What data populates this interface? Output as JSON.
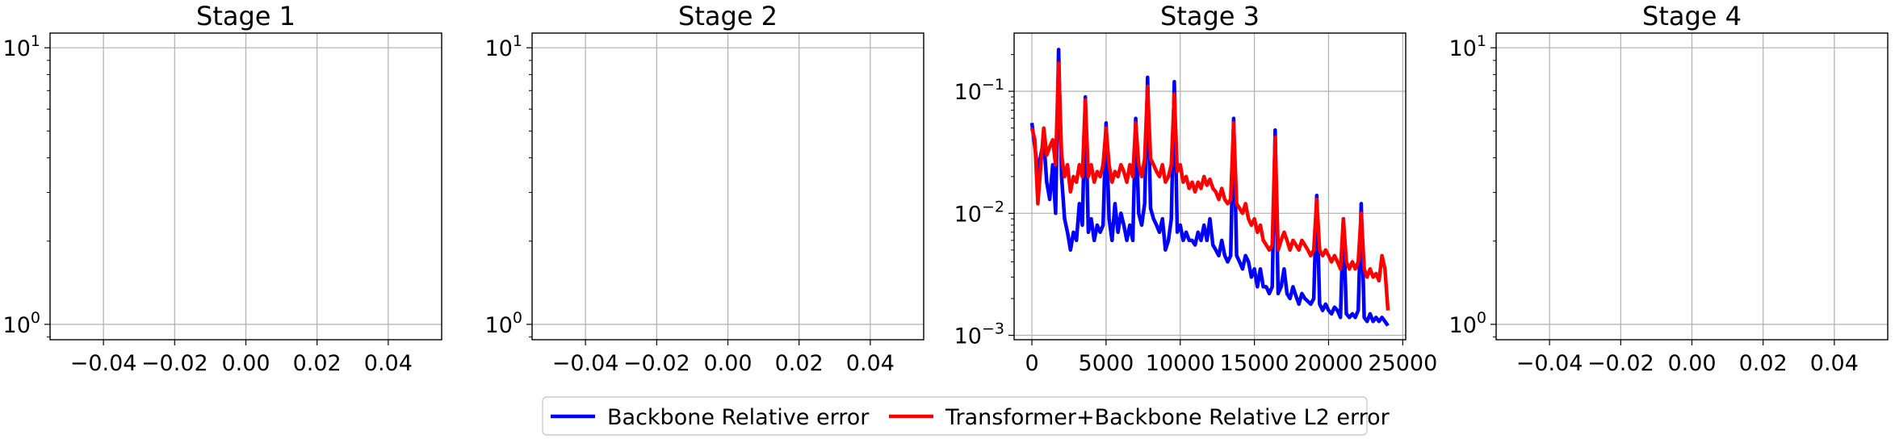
{
  "chart_data": [
    {
      "type": "line",
      "title": "Stage 1",
      "xlabel": "",
      "ylabel": "",
      "yscale": "log",
      "xlim": [
        -0.055,
        0.055
      ],
      "ylim": [
        0.88,
        11.3
      ],
      "grid": true,
      "xticks": [
        -0.04,
        -0.02,
        0.0,
        0.02,
        0.04
      ],
      "xtick_labels": [
        "−0.04",
        "−0.02",
        "0.00",
        "0.02",
        "0.04"
      ],
      "yticks": [
        1,
        10
      ],
      "ytick_labels": [
        [
          "10",
          "0"
        ],
        [
          "10",
          "1"
        ]
      ],
      "series": []
    },
    {
      "type": "line",
      "title": "Stage 2",
      "xlabel": "",
      "ylabel": "",
      "yscale": "log",
      "xlim": [
        -0.055,
        0.055
      ],
      "ylim": [
        0.88,
        11.3
      ],
      "grid": true,
      "xticks": [
        -0.04,
        -0.02,
        0.0,
        0.02,
        0.04
      ],
      "xtick_labels": [
        "−0.04",
        "−0.02",
        "0.00",
        "0.02",
        "0.04"
      ],
      "yticks": [
        1,
        10
      ],
      "ytick_labels": [
        [
          "10",
          "0"
        ],
        [
          "10",
          "1"
        ]
      ],
      "series": []
    },
    {
      "type": "line",
      "title": "Stage 3",
      "xlabel": "",
      "ylabel": "",
      "yscale": "log",
      "xlim": [
        -1200,
        25200
      ],
      "ylim": [
        0.00092,
        0.3
      ],
      "grid": true,
      "xticks": [
        0,
        5000,
        10000,
        15000,
        20000,
        25000
      ],
      "xtick_labels": [
        "0",
        "5000",
        "10000",
        "15000",
        "20000",
        "25000"
      ],
      "yticks": [
        0.001,
        0.01,
        0.1
      ],
      "ytick_labels": [
        [
          "10",
          "−3"
        ],
        [
          "10",
          "−2"
        ],
        [
          "10",
          "−1"
        ]
      ],
      "series": [
        {
          "name": "Backbone Relative error",
          "color": "#0000ff",
          "x": [
            0,
            200,
            400,
            600,
            800,
            1000,
            1200,
            1400,
            1600,
            1800,
            2000,
            2200,
            2400,
            2600,
            2800,
            3000,
            3200,
            3400,
            3600,
            3800,
            4000,
            4200,
            4400,
            4600,
            4800,
            5000,
            5200,
            5400,
            5600,
            5800,
            6000,
            6200,
            6400,
            6600,
            6800,
            7000,
            7200,
            7400,
            7600,
            7800,
            8000,
            8200,
            8400,
            8600,
            8800,
            9000,
            9200,
            9400,
            9600,
            9800,
            10000,
            10200,
            10400,
            10600,
            10800,
            11000,
            11200,
            11400,
            11600,
            11800,
            12000,
            12200,
            12400,
            12600,
            12800,
            13000,
            13200,
            13400,
            13600,
            13800,
            14000,
            14200,
            14400,
            14600,
            14800,
            15000,
            15200,
            15400,
            15600,
            15800,
            16000,
            16200,
            16400,
            16600,
            16800,
            17000,
            17200,
            17400,
            17600,
            17800,
            18000,
            18200,
            18400,
            18600,
            18800,
            19000,
            19200,
            19400,
            19600,
            19800,
            20000,
            20200,
            20400,
            20600,
            20800,
            21000,
            21200,
            21400,
            21600,
            21800,
            22000,
            22200,
            22400,
            22600,
            22800,
            23000,
            23200,
            23400,
            23600,
            23800,
            24000
          ],
          "y": [
            0.055,
            0.035,
            0.022,
            0.03,
            0.04,
            0.018,
            0.013,
            0.025,
            0.01,
            0.22,
            0.02,
            0.009,
            0.007,
            0.005,
            0.007,
            0.006,
            0.012,
            0.008,
            0.09,
            0.007,
            0.009,
            0.006,
            0.008,
            0.007,
            0.008,
            0.055,
            0.009,
            0.006,
            0.012,
            0.007,
            0.01,
            0.008,
            0.006,
            0.008,
            0.006,
            0.06,
            0.01,
            0.008,
            0.012,
            0.13,
            0.011,
            0.009,
            0.008,
            0.007,
            0.009,
            0.005,
            0.006,
            0.009,
            0.12,
            0.007,
            0.008,
            0.006,
            0.007,
            0.006,
            0.006,
            0.0055,
            0.007,
            0.006,
            0.008,
            0.006,
            0.009,
            0.0055,
            0.005,
            0.0045,
            0.006,
            0.0045,
            0.004,
            0.0045,
            0.06,
            0.0045,
            0.004,
            0.0035,
            0.0045,
            0.004,
            0.003,
            0.0035,
            0.0025,
            0.0035,
            0.0025,
            0.0025,
            0.0022,
            0.0025,
            0.048,
            0.0022,
            0.0025,
            0.0035,
            0.0022,
            0.002,
            0.0025,
            0.0021,
            0.0018,
            0.0022,
            0.002,
            0.0019,
            0.0018,
            0.002,
            0.014,
            0.0018,
            0.0016,
            0.0018,
            0.0016,
            0.0015,
            0.0017,
            0.0016,
            0.0014,
            0.009,
            0.0015,
            0.0014,
            0.0015,
            0.0014,
            0.0016,
            0.012,
            0.0014,
            0.0013,
            0.0015,
            0.0013,
            0.0014,
            0.0013,
            0.0014,
            0.0013,
            0.0012
          ]
        },
        {
          "name": "Transformer+Backbone Relative L2 error",
          "color": "#ff0000",
          "x": [
            0,
            200,
            400,
            600,
            800,
            1000,
            1200,
            1400,
            1600,
            1800,
            2000,
            2200,
            2400,
            2600,
            2800,
            3000,
            3200,
            3400,
            3600,
            3800,
            4000,
            4200,
            4400,
            4600,
            4800,
            5000,
            5200,
            5400,
            5600,
            5800,
            6000,
            6200,
            6400,
            6600,
            6800,
            7000,
            7200,
            7400,
            7600,
            7800,
            8000,
            8200,
            8400,
            8600,
            8800,
            9000,
            9200,
            9400,
            9600,
            9800,
            10000,
            10200,
            10400,
            10600,
            10800,
            11000,
            11200,
            11400,
            11600,
            11800,
            12000,
            12200,
            12400,
            12600,
            12800,
            13000,
            13200,
            13400,
            13600,
            13800,
            14000,
            14200,
            14400,
            14600,
            14800,
            15000,
            15200,
            15400,
            15600,
            15800,
            16000,
            16200,
            16400,
            16600,
            16800,
            17000,
            17200,
            17400,
            17600,
            17800,
            18000,
            18200,
            18400,
            18600,
            18800,
            19000,
            19200,
            19400,
            19600,
            19800,
            20000,
            20200,
            20400,
            20600,
            20800,
            21000,
            21200,
            21400,
            21600,
            21800,
            22000,
            22200,
            22400,
            22600,
            22800,
            23000,
            23200,
            23400,
            23600,
            23800,
            24000
          ],
          "y": [
            0.05,
            0.04,
            0.012,
            0.025,
            0.05,
            0.03,
            0.035,
            0.04,
            0.025,
            0.17,
            0.03,
            0.02,
            0.025,
            0.015,
            0.02,
            0.018,
            0.025,
            0.02,
            0.085,
            0.02,
            0.025,
            0.018,
            0.022,
            0.02,
            0.025,
            0.05,
            0.025,
            0.018,
            0.022,
            0.02,
            0.025,
            0.022,
            0.018,
            0.025,
            0.02,
            0.055,
            0.025,
            0.02,
            0.028,
            0.11,
            0.028,
            0.025,
            0.022,
            0.02,
            0.025,
            0.018,
            0.02,
            0.025,
            0.095,
            0.022,
            0.025,
            0.018,
            0.02,
            0.016,
            0.018,
            0.015,
            0.018,
            0.016,
            0.02,
            0.017,
            0.019,
            0.016,
            0.015,
            0.013,
            0.016,
            0.013,
            0.012,
            0.013,
            0.055,
            0.012,
            0.011,
            0.01,
            0.012,
            0.009,
            0.008,
            0.009,
            0.007,
            0.008,
            0.006,
            0.0055,
            0.005,
            0.0055,
            0.042,
            0.005,
            0.006,
            0.007,
            0.006,
            0.005,
            0.006,
            0.0055,
            0.005,
            0.006,
            0.0055,
            0.005,
            0.0045,
            0.005,
            0.013,
            0.005,
            0.0045,
            0.005,
            0.0045,
            0.004,
            0.0045,
            0.004,
            0.0035,
            0.009,
            0.004,
            0.0035,
            0.004,
            0.0035,
            0.004,
            0.01,
            0.0035,
            0.003,
            0.0035,
            0.003,
            0.0032,
            0.0028,
            0.0045,
            0.0035,
            0.0016
          ]
        }
      ]
    },
    {
      "type": "line",
      "title": "Stage 4",
      "xlabel": "",
      "ylabel": "",
      "yscale": "log",
      "xlim": [
        -0.055,
        0.055
      ],
      "ylim": [
        0.88,
        11.3
      ],
      "grid": true,
      "xticks": [
        -0.04,
        -0.02,
        0.0,
        0.02,
        0.04
      ],
      "xtick_labels": [
        "−0.04",
        "−0.02",
        "0.00",
        "0.02",
        "0.04"
      ],
      "yticks": [
        1,
        10
      ],
      "ytick_labels": [
        [
          "10",
          "0"
        ],
        [
          "10",
          "1"
        ]
      ],
      "series": []
    }
  ],
  "legend": {
    "placement": "bottom-center",
    "entries": [
      {
        "label": "Backbone Relative error",
        "color": "#0000ff"
      },
      {
        "label": "Transformer+Backbone Relative L2 error",
        "color": "#ff0000"
      }
    ]
  }
}
